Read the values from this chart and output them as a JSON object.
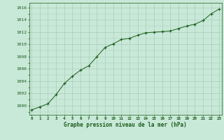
{
  "x": [
    0,
    1,
    2,
    3,
    4,
    5,
    6,
    7,
    8,
    9,
    10,
    11,
    12,
    13,
    14,
    15,
    16,
    17,
    18,
    19,
    20,
    21,
    22,
    23
  ],
  "y": [
    999.3,
    999.8,
    1000.3,
    1001.8,
    1003.6,
    1004.8,
    1005.8,
    1006.5,
    1008.0,
    1009.5,
    1010.1,
    1010.8,
    1011.0,
    1011.5,
    1011.9,
    1012.0,
    1012.1,
    1012.2,
    1012.6,
    1013.0,
    1013.3,
    1013.9,
    1015.0,
    1015.8
  ],
  "line_color": "#1a5c1a",
  "marker": "+",
  "bg_color": "#c8e8d8",
  "grid_color": "#aaccbb",
  "xlabel": "Graphe pression niveau de la mer (hPa)",
  "xlabel_color": "#1a5c1a",
  "tick_color": "#1a5c1a",
  "ylim": [
    998.5,
    1016.8
  ],
  "yticks": [
    1000,
    1002,
    1004,
    1006,
    1008,
    1010,
    1012,
    1014,
    1016
  ],
  "xlim": [
    -0.3,
    23.3
  ],
  "xticks": [
    0,
    1,
    2,
    3,
    4,
    5,
    6,
    7,
    8,
    9,
    10,
    11,
    12,
    13,
    14,
    15,
    16,
    17,
    18,
    19,
    20,
    21,
    22,
    23
  ]
}
